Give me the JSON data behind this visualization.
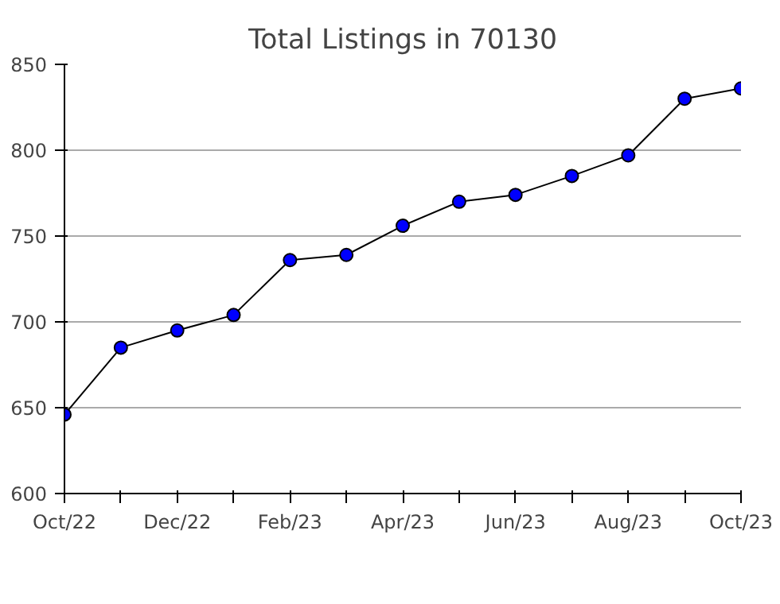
{
  "chart_data": {
    "type": "line",
    "title": "Total Listings in 70130",
    "categories": [
      "Oct/22",
      null,
      "Dec/22",
      null,
      "Feb/23",
      null,
      "Apr/23",
      null,
      "Jun/23",
      null,
      "Aug/23",
      null,
      "Oct/23"
    ],
    "series": [
      {
        "color": "#0000ff",
        "values": [
          646,
          685,
          695,
          704,
          736,
          739,
          756,
          770,
          774,
          785,
          797,
          830,
          836
        ]
      }
    ],
    "ylim": [
      600,
      850
    ],
    "yticks": [
      600,
      650,
      700,
      750,
      800,
      850
    ],
    "grid": "y",
    "marker": "circle",
    "line_style": "solid"
  }
}
